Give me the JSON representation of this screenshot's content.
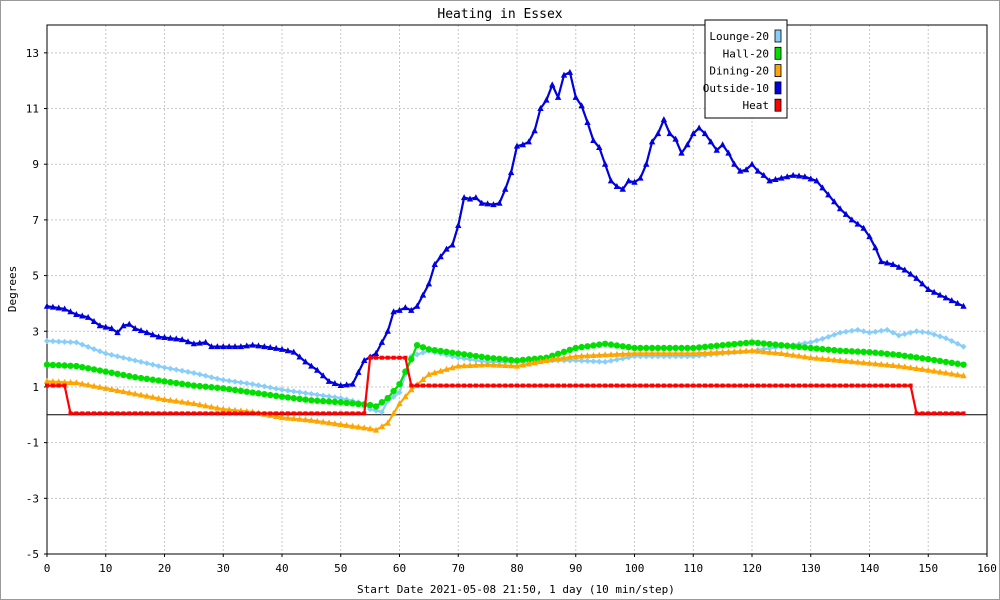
{
  "chart_data": {
    "type": "line",
    "title": "Heating in Essex",
    "xlabel": "Start Date 2021-05-08 21:50, 1 day (10 min/step)",
    "ylabel": "Degrees",
    "xlim": [
      0,
      160
    ],
    "ylim": [
      -5,
      14
    ],
    "xticks": [
      0,
      10,
      20,
      30,
      40,
      50,
      60,
      70,
      80,
      90,
      100,
      110,
      120,
      130,
      140,
      150,
      160
    ],
    "yticks": [
      -5,
      -3,
      -1,
      1,
      3,
      5,
      7,
      9,
      11,
      13
    ],
    "grid": true,
    "legend_position": "top-right",
    "series": [
      {
        "name": "Lounge-20",
        "color": "#87cefa",
        "marker": "diamond",
        "points": [
          [
            0,
            2.65
          ],
          [
            5,
            2.6
          ],
          [
            10,
            2.2
          ],
          [
            15,
            1.95
          ],
          [
            20,
            1.7
          ],
          [
            25,
            1.5
          ],
          [
            30,
            1.25
          ],
          [
            35,
            1.1
          ],
          [
            40,
            0.9
          ],
          [
            45,
            0.75
          ],
          [
            50,
            0.6
          ],
          [
            54,
            0.4
          ],
          [
            55,
            0.2
          ],
          [
            57,
            0.1
          ],
          [
            58,
            0.5
          ],
          [
            60,
            0.8
          ],
          [
            62,
            2.1
          ],
          [
            65,
            2.3
          ],
          [
            70,
            2.05
          ],
          [
            75,
            1.9
          ],
          [
            80,
            1.9
          ],
          [
            85,
            1.95
          ],
          [
            90,
            1.95
          ],
          [
            95,
            1.9
          ],
          [
            100,
            2.1
          ],
          [
            105,
            2.1
          ],
          [
            110,
            2.1
          ],
          [
            115,
            2.2
          ],
          [
            120,
            2.3
          ],
          [
            125,
            2.45
          ],
          [
            130,
            2.6
          ],
          [
            133,
            2.8
          ],
          [
            135,
            2.95
          ],
          [
            138,
            3.05
          ],
          [
            140,
            2.95
          ],
          [
            143,
            3.05
          ],
          [
            145,
            2.85
          ],
          [
            148,
            3.0
          ],
          [
            150,
            2.95
          ],
          [
            153,
            2.75
          ],
          [
            156,
            2.45
          ]
        ]
      },
      {
        "name": "Hall-20",
        "color": "#00e000",
        "marker": "circle",
        "points": [
          [
            0,
            1.8
          ],
          [
            5,
            1.75
          ],
          [
            10,
            1.55
          ],
          [
            15,
            1.35
          ],
          [
            20,
            1.2
          ],
          [
            25,
            1.05
          ],
          [
            30,
            0.95
          ],
          [
            35,
            0.8
          ],
          [
            40,
            0.65
          ],
          [
            45,
            0.52
          ],
          [
            50,
            0.45
          ],
          [
            55,
            0.35
          ],
          [
            56,
            0.3
          ],
          [
            58,
            0.6
          ],
          [
            60,
            1.1
          ],
          [
            62,
            2.0
          ],
          [
            63,
            2.5
          ],
          [
            65,
            2.35
          ],
          [
            70,
            2.2
          ],
          [
            75,
            2.05
          ],
          [
            80,
            1.95
          ],
          [
            85,
            2.05
          ],
          [
            90,
            2.4
          ],
          [
            95,
            2.55
          ],
          [
            100,
            2.4
          ],
          [
            105,
            2.4
          ],
          [
            110,
            2.4
          ],
          [
            115,
            2.5
          ],
          [
            120,
            2.6
          ],
          [
            125,
            2.5
          ],
          [
            130,
            2.4
          ],
          [
            135,
            2.3
          ],
          [
            140,
            2.25
          ],
          [
            145,
            2.15
          ],
          [
            150,
            2.0
          ],
          [
            156,
            1.8
          ]
        ]
      },
      {
        "name": "Dining-20",
        "color": "#ffa500",
        "marker": "triangle",
        "points": [
          [
            0,
            1.2
          ],
          [
            5,
            1.15
          ],
          [
            10,
            0.95
          ],
          [
            15,
            0.75
          ],
          [
            20,
            0.55
          ],
          [
            25,
            0.4
          ],
          [
            30,
            0.2
          ],
          [
            35,
            0.1
          ],
          [
            40,
            -0.1
          ],
          [
            45,
            -0.2
          ],
          [
            50,
            -0.35
          ],
          [
            55,
            -0.5
          ],
          [
            56,
            -0.55
          ],
          [
            58,
            -0.3
          ],
          [
            60,
            0.4
          ],
          [
            62,
            0.9
          ],
          [
            65,
            1.45
          ],
          [
            70,
            1.75
          ],
          [
            75,
            1.8
          ],
          [
            80,
            1.75
          ],
          [
            85,
            1.95
          ],
          [
            90,
            2.1
          ],
          [
            95,
            2.15
          ],
          [
            100,
            2.2
          ],
          [
            105,
            2.2
          ],
          [
            110,
            2.2
          ],
          [
            115,
            2.25
          ],
          [
            120,
            2.3
          ],
          [
            125,
            2.2
          ],
          [
            130,
            2.05
          ],
          [
            135,
            1.95
          ],
          [
            140,
            1.85
          ],
          [
            145,
            1.75
          ],
          [
            150,
            1.6
          ],
          [
            156,
            1.4
          ]
        ]
      },
      {
        "name": "Outside-10",
        "color": "#0000e0",
        "marker": "triangle",
        "points": [
          [
            0,
            3.9
          ],
          [
            3,
            3.8
          ],
          [
            5,
            3.6
          ],
          [
            7,
            3.5
          ],
          [
            9,
            3.2
          ],
          [
            11,
            3.1
          ],
          [
            12,
            2.95
          ],
          [
            13,
            3.2
          ],
          [
            14,
            3.25
          ],
          [
            15,
            3.1
          ],
          [
            17,
            2.95
          ],
          [
            19,
            2.8
          ],
          [
            21,
            2.75
          ],
          [
            23,
            2.7
          ],
          [
            25,
            2.55
          ],
          [
            27,
            2.6
          ],
          [
            28,
            2.45
          ],
          [
            30,
            2.45
          ],
          [
            33,
            2.45
          ],
          [
            35,
            2.5
          ],
          [
            37,
            2.45
          ],
          [
            40,
            2.35
          ],
          [
            42,
            2.25
          ],
          [
            44,
            1.9
          ],
          [
            46,
            1.6
          ],
          [
            48,
            1.2
          ],
          [
            50,
            1.05
          ],
          [
            52,
            1.1
          ],
          [
            54,
            1.95
          ],
          [
            56,
            2.2
          ],
          [
            58,
            3.0
          ],
          [
            59,
            3.7
          ],
          [
            60,
            3.75
          ],
          [
            61,
            3.85
          ],
          [
            62,
            3.75
          ],
          [
            63,
            3.9
          ],
          [
            65,
            4.7
          ],
          [
            66,
            5.4
          ],
          [
            68,
            5.95
          ],
          [
            69,
            6.1
          ],
          [
            70,
            6.8
          ],
          [
            71,
            7.8
          ],
          [
            72,
            7.75
          ],
          [
            73,
            7.8
          ],
          [
            74,
            7.6
          ],
          [
            76,
            7.55
          ],
          [
            77,
            7.6
          ],
          [
            78,
            8.1
          ],
          [
            79,
            8.7
          ],
          [
            80,
            9.65
          ],
          [
            81,
            9.7
          ],
          [
            82,
            9.8
          ],
          [
            83,
            10.2
          ],
          [
            84,
            11.0
          ],
          [
            85,
            11.3
          ],
          [
            86,
            11.85
          ],
          [
            87,
            11.4
          ],
          [
            88,
            12.2
          ],
          [
            89,
            12.3
          ],
          [
            90,
            11.4
          ],
          [
            91,
            11.1
          ],
          [
            92,
            10.5
          ],
          [
            93,
            9.85
          ],
          [
            94,
            9.6
          ],
          [
            95,
            9.0
          ],
          [
            96,
            8.4
          ],
          [
            97,
            8.2
          ],
          [
            98,
            8.1
          ],
          [
            99,
            8.4
          ],
          [
            100,
            8.35
          ],
          [
            101,
            8.5
          ],
          [
            102,
            9.0
          ],
          [
            103,
            9.8
          ],
          [
            104,
            10.1
          ],
          [
            105,
            10.6
          ],
          [
            106,
            10.1
          ],
          [
            107,
            9.9
          ],
          [
            108,
            9.4
          ],
          [
            109,
            9.7
          ],
          [
            110,
            10.1
          ],
          [
            111,
            10.3
          ],
          [
            112,
            10.1
          ],
          [
            113,
            9.8
          ],
          [
            114,
            9.5
          ],
          [
            115,
            9.7
          ],
          [
            116,
            9.4
          ],
          [
            117,
            9.0
          ],
          [
            118,
            8.75
          ],
          [
            119,
            8.8
          ],
          [
            120,
            9.0
          ],
          [
            121,
            8.75
          ],
          [
            122,
            8.6
          ],
          [
            123,
            8.4
          ],
          [
            125,
            8.5
          ],
          [
            127,
            8.6
          ],
          [
            129,
            8.55
          ],
          [
            131,
            8.4
          ],
          [
            133,
            7.9
          ],
          [
            135,
            7.4
          ],
          [
            137,
            7.0
          ],
          [
            139,
            6.7
          ],
          [
            140,
            6.4
          ],
          [
            141,
            6.0
          ],
          [
            142,
            5.5
          ],
          [
            144,
            5.4
          ],
          [
            146,
            5.2
          ],
          [
            148,
            4.9
          ],
          [
            150,
            4.5
          ],
          [
            152,
            4.3
          ],
          [
            154,
            4.1
          ],
          [
            156,
            3.9
          ]
        ]
      },
      {
        "name": "Heat",
        "color": "#ff0000",
        "marker": "square",
        "points": [
          [
            0,
            1.05
          ],
          [
            3,
            1.05
          ],
          [
            4,
            0.05
          ],
          [
            54,
            0.05
          ],
          [
            55,
            2.05
          ],
          [
            61,
            2.05
          ],
          [
            62,
            1.05
          ],
          [
            147,
            1.05
          ],
          [
            148,
            0.05
          ],
          [
            156,
            0.05
          ]
        ]
      }
    ]
  }
}
